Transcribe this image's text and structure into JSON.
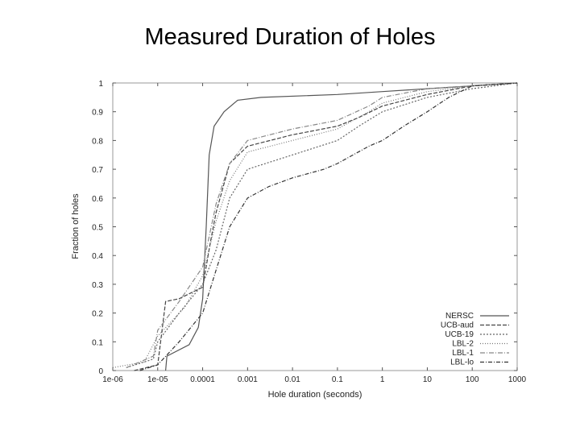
{
  "slide": {
    "title": "Measured Duration of Holes"
  },
  "chart_data": {
    "type": "line",
    "title": "",
    "xlabel": "Hole duration (seconds)",
    "ylabel": "Fraction of holes",
    "x_scale": "log",
    "xlim": [
      1e-06,
      1000
    ],
    "ylim": [
      0,
      1
    ],
    "x_ticks": [
      1e-06,
      1e-05,
      0.0001,
      0.001,
      0.01,
      0.1,
      1,
      10,
      100,
      1000
    ],
    "x_tick_labels": [
      "1e-06",
      "1e-05",
      "0.0001",
      "0.001",
      "0.01",
      "0.1",
      "1",
      "10",
      "100",
      "1000"
    ],
    "y_ticks": [
      0,
      0.1,
      0.2,
      0.3,
      0.4,
      0.5,
      0.6,
      0.7,
      0.8,
      0.9,
      1
    ],
    "y_tick_labels": [
      "0",
      "0.1",
      "0.2",
      "0.3",
      "0.4",
      "0.5",
      "0.6",
      "0.7",
      "0.8",
      "0.9",
      "1"
    ],
    "legend_position": "bottom-right",
    "grid": false,
    "series": [
      {
        "name": "NERSC",
        "color": "#555555",
        "dash": "",
        "points": [
          [
            1.5e-05,
            0
          ],
          [
            1.6e-05,
            0.05
          ],
          [
            5e-05,
            0.09
          ],
          [
            8e-05,
            0.15
          ],
          [
            0.0001,
            0.25
          ],
          [
            0.00012,
            0.5
          ],
          [
            0.00014,
            0.75
          ],
          [
            0.00018,
            0.85
          ],
          [
            0.0003,
            0.9
          ],
          [
            0.0006,
            0.94
          ],
          [
            0.002,
            0.95
          ],
          [
            0.1,
            0.96
          ],
          [
            1,
            0.97
          ],
          [
            10,
            0.98
          ],
          [
            100,
            0.99
          ],
          [
            1000,
            1.0
          ]
        ]
      },
      {
        "name": "UCB-aud",
        "color": "#444444",
        "dash": "5,2",
        "points": [
          [
            3e-06,
            0
          ],
          [
            1e-05,
            0.02
          ],
          [
            1.5e-05,
            0.24
          ],
          [
            3e-05,
            0.25
          ],
          [
            0.0001,
            0.29
          ],
          [
            0.00015,
            0.45
          ],
          [
            0.0002,
            0.55
          ],
          [
            0.0003,
            0.65
          ],
          [
            0.0004,
            0.72
          ],
          [
            0.001,
            0.78
          ],
          [
            0.01,
            0.82
          ],
          [
            0.1,
            0.85
          ],
          [
            0.3,
            0.88
          ],
          [
            1,
            0.92
          ],
          [
            10,
            0.96
          ],
          [
            100,
            0.99
          ],
          [
            1000,
            1.0
          ]
        ]
      },
      {
        "name": "UCB-19",
        "color": "#666666",
        "dash": "2,2",
        "points": [
          [
            2e-06,
            0.01
          ],
          [
            8e-06,
            0.04
          ],
          [
            1e-05,
            0.1
          ],
          [
            3e-05,
            0.2
          ],
          [
            0.0001,
            0.3
          ],
          [
            0.0002,
            0.42
          ],
          [
            0.0004,
            0.6
          ],
          [
            0.001,
            0.7
          ],
          [
            0.01,
            0.75
          ],
          [
            0.1,
            0.8
          ],
          [
            0.3,
            0.85
          ],
          [
            1,
            0.9
          ],
          [
            10,
            0.95
          ],
          [
            100,
            0.98
          ],
          [
            1000,
            1.0
          ]
        ]
      },
      {
        "name": "LBL-2",
        "color": "#777777",
        "dash": "1,2",
        "points": [
          [
            1e-06,
            0.01
          ],
          [
            5e-06,
            0.03
          ],
          [
            1e-05,
            0.12
          ],
          [
            4e-05,
            0.22
          ],
          [
            0.0001,
            0.33
          ],
          [
            0.0002,
            0.52
          ],
          [
            0.0004,
            0.66
          ],
          [
            0.001,
            0.76
          ],
          [
            0.01,
            0.8
          ],
          [
            0.1,
            0.84
          ],
          [
            0.5,
            0.9
          ],
          [
            1,
            0.93
          ],
          [
            10,
            0.97
          ],
          [
            100,
            0.99
          ],
          [
            1000,
            1.0
          ]
        ]
      },
      {
        "name": "LBL-1",
        "color": "#888888",
        "dash": "6,2,1,2",
        "points": [
          [
            2e-06,
            0.01
          ],
          [
            8e-06,
            0.05
          ],
          [
            1e-05,
            0.14
          ],
          [
            3e-05,
            0.24
          ],
          [
            0.0001,
            0.36
          ],
          [
            0.0002,
            0.58
          ],
          [
            0.0004,
            0.72
          ],
          [
            0.001,
            0.8
          ],
          [
            0.01,
            0.84
          ],
          [
            0.1,
            0.87
          ],
          [
            0.5,
            0.92
          ],
          [
            1,
            0.95
          ],
          [
            10,
            0.98
          ],
          [
            100,
            0.99
          ],
          [
            1000,
            1.0
          ]
        ]
      },
      {
        "name": "LBL-lo",
        "color": "#333333",
        "dash": "5,2,1,2",
        "points": [
          [
            4e-06,
            0
          ],
          [
            1e-05,
            0.02
          ],
          [
            3e-05,
            0.1
          ],
          [
            0.0001,
            0.2
          ],
          [
            0.0002,
            0.35
          ],
          [
            0.0004,
            0.5
          ],
          [
            0.001,
            0.6
          ],
          [
            0.003,
            0.64
          ],
          [
            0.01,
            0.67
          ],
          [
            0.05,
            0.7
          ],
          [
            0.1,
            0.72
          ],
          [
            0.5,
            0.78
          ],
          [
            1,
            0.8
          ],
          [
            3,
            0.85
          ],
          [
            10,
            0.9
          ],
          [
            30,
            0.95
          ],
          [
            100,
            0.99
          ],
          [
            1000,
            1.0
          ]
        ]
      }
    ]
  }
}
